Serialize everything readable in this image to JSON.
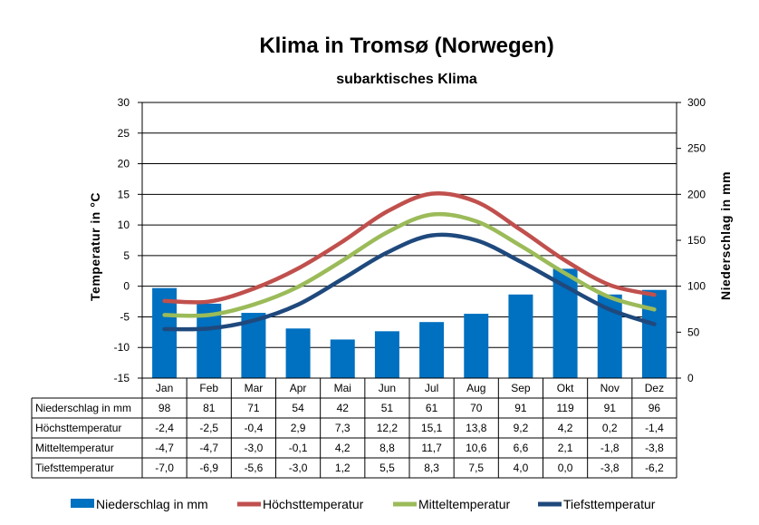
{
  "chart_data": {
    "type": "bar",
    "title": "Klima in Tromsø (Norwegen)",
    "subtitle": "subarktisches Klima",
    "ylabel_left": "Temperatur in °C",
    "ylabel_right": "Niederschlag in mm",
    "ylim_left": [
      -15,
      30
    ],
    "ylim_right": [
      0,
      300
    ],
    "yticks_left": [
      30,
      25,
      20,
      15,
      10,
      5,
      0,
      -5,
      -10,
      -15
    ],
    "yticks_right": [
      300,
      250,
      200,
      150,
      100,
      50,
      0
    ],
    "grid": true,
    "legend_position": "bottom",
    "categories": [
      "Jan",
      "Feb",
      "Mar",
      "Apr",
      "Mai",
      "Jun",
      "Jul",
      "Aug",
      "Sep",
      "Okt",
      "Nov",
      "Dez"
    ],
    "series": [
      {
        "name": "Niederschlag in mm",
        "kind": "bar",
        "axis": "right",
        "color": "#0070C0",
        "values": [
          98,
          81,
          71,
          54,
          42,
          51,
          61,
          70,
          91,
          119,
          91,
          96
        ],
        "labels": [
          "98",
          "81",
          "71",
          "54",
          "42",
          "51",
          "61",
          "70",
          "91",
          "119",
          "91",
          "96"
        ]
      },
      {
        "name": "Höchsttemperatur",
        "kind": "line",
        "axis": "left",
        "color": "#C0504D",
        "values": [
          -2.4,
          -2.5,
          -0.4,
          2.9,
          7.3,
          12.2,
          15.1,
          13.8,
          9.2,
          4.2,
          0.2,
          -1.4
        ],
        "labels": [
          "-2,4",
          "-2,5",
          "-0,4",
          "2,9",
          "7,3",
          "12,2",
          "15,1",
          "13,8",
          "9,2",
          "4,2",
          "0,2",
          "-1,4"
        ]
      },
      {
        "name": "Mitteltemperatur",
        "kind": "line",
        "axis": "left",
        "color": "#9BBB59",
        "values": [
          -4.7,
          -4.7,
          -3.0,
          -0.1,
          4.2,
          8.8,
          11.7,
          10.6,
          6.6,
          2.1,
          -1.8,
          -3.8
        ],
        "labels": [
          "-4,7",
          "-4,7",
          "-3,0",
          "-0,1",
          "4,2",
          "8,8",
          "11,7",
          "10,6",
          "6,6",
          "2,1",
          "-1,8",
          "-3,8"
        ]
      },
      {
        "name": "Tiefsttemperatur",
        "kind": "line",
        "axis": "left",
        "color": "#1F497D",
        "values": [
          -7.0,
          -6.9,
          -5.6,
          -3.0,
          1.2,
          5.5,
          8.3,
          7.5,
          4.0,
          0.0,
          -3.8,
          -6.2
        ],
        "labels": [
          "-7,0",
          "-6,9",
          "-5,6",
          "-3,0",
          "1,2",
          "5,5",
          "8,3",
          "7,5",
          "4,0",
          "0,0",
          "-3,8",
          "-6,2"
        ]
      }
    ]
  }
}
